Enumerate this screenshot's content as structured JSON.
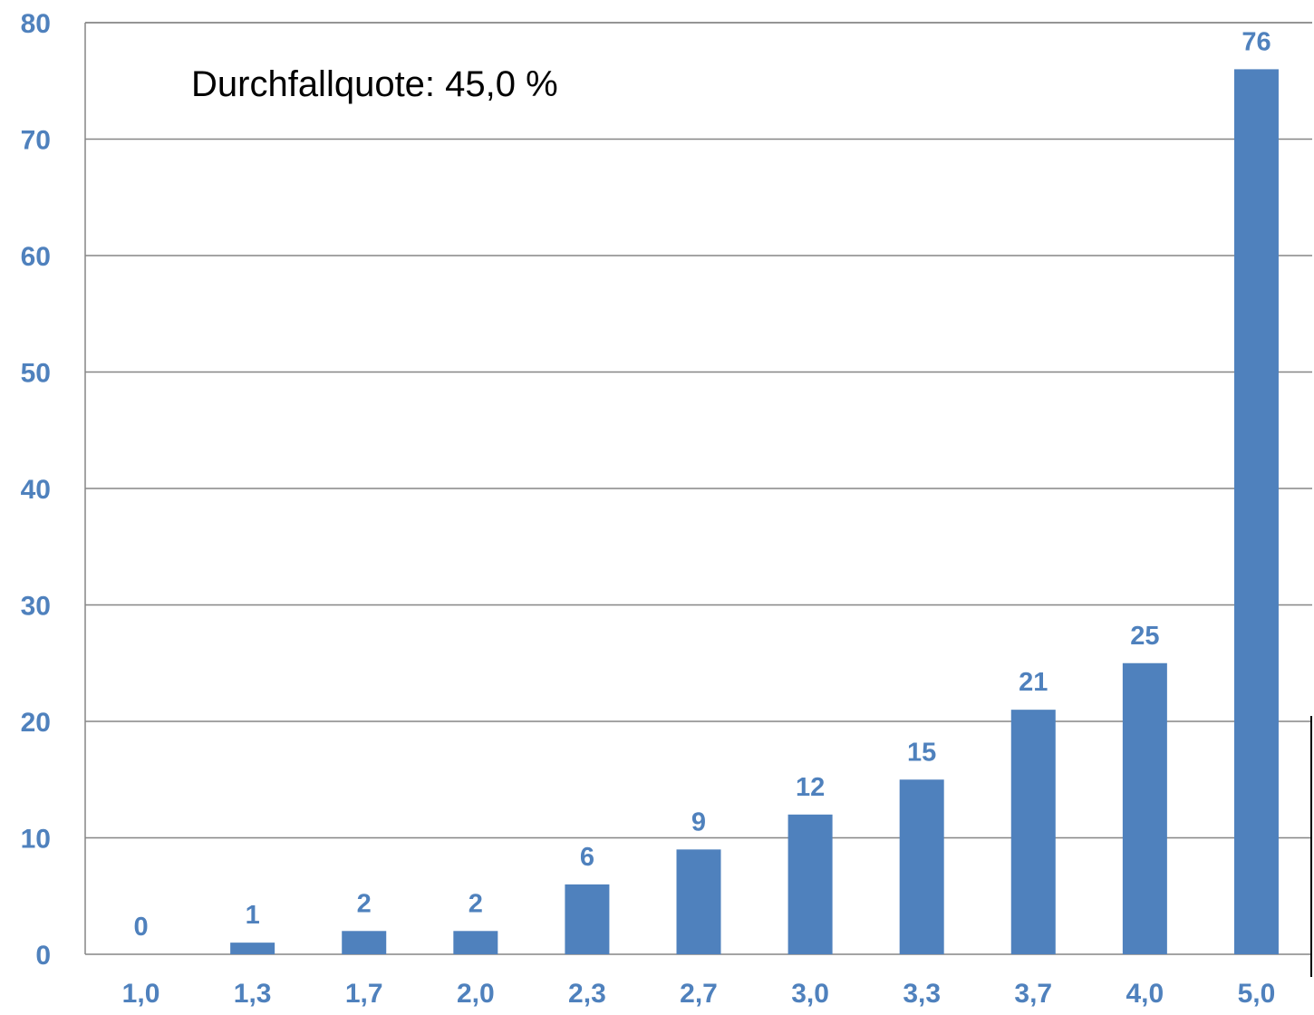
{
  "chart_data": {
    "type": "bar",
    "categories": [
      "1,0",
      "1,3",
      "1,7",
      "2,0",
      "2,3",
      "2,7",
      "3,0",
      "3,3",
      "3,7",
      "4,0",
      "5,0"
    ],
    "values": [
      0,
      1,
      2,
      2,
      6,
      9,
      12,
      15,
      21,
      25,
      76
    ],
    "data_labels": [
      "0",
      "1",
      "2",
      "2",
      "6",
      "9",
      "12",
      "15",
      "21",
      "25",
      "76"
    ],
    "y_ticks": [
      "0",
      "10",
      "20",
      "30",
      "40",
      "50",
      "60",
      "70",
      "80"
    ],
    "ylim": [
      0,
      80
    ],
    "grid": true,
    "annotation": "Durchfallquote: 45,0 %",
    "colors": {
      "bar": "#4F81BD",
      "label": "#4F81BD",
      "grid": "#868686"
    }
  }
}
